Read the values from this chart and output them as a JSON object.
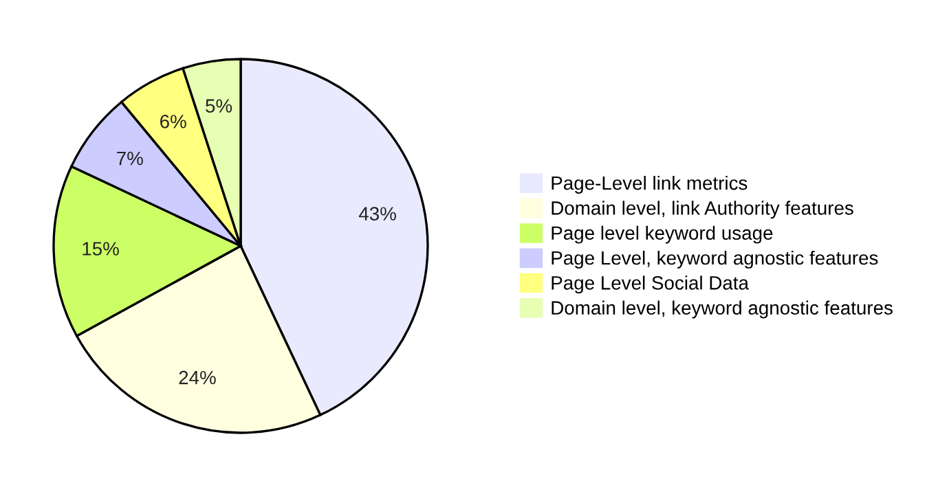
{
  "chart_data": {
    "type": "pie",
    "categories": [
      "Page-Level link metrics",
      "Domain level, link Authority features",
      "Page level keyword usage",
      "Page Level, keyword agnostic features",
      "Page Level Social Data",
      "Domain level, keyword agnostic features"
    ],
    "values": [
      43,
      24,
      15,
      7,
      6,
      5
    ],
    "colors": [
      "#eaeaff",
      "#ffffe0",
      "#ccff66",
      "#ccccff",
      "#ffff80",
      "#e6ffb3"
    ],
    "value_labels": [
      "43%",
      "24%",
      "15%",
      "7%",
      "6%",
      "5%"
    ],
    "legend": "right"
  }
}
